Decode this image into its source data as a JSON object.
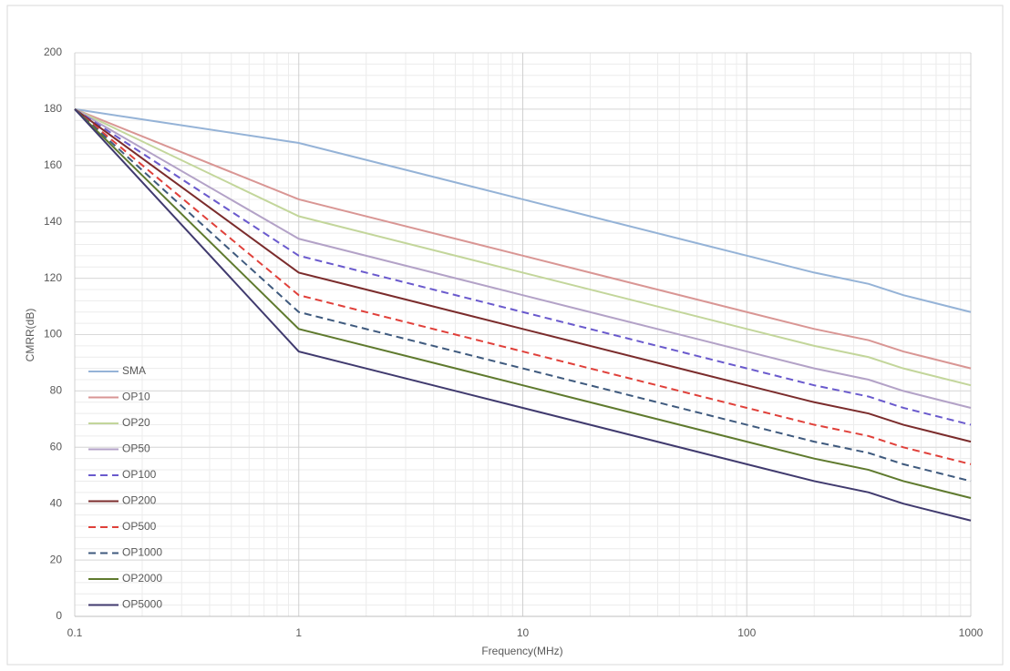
{
  "chart_data": {
    "type": "line",
    "x_label": "Frequency(MHz)",
    "y_label": "CMRR(dB)",
    "x": [
      0.1,
      1,
      10,
      100,
      200,
      350,
      500,
      1000
    ],
    "xlim": [
      0.1,
      1000
    ],
    "xticks": [
      0.1,
      1,
      10,
      100,
      1000
    ],
    "x_log": true,
    "ylim": [
      0,
      200
    ],
    "yticks": [
      0,
      20,
      40,
      60,
      80,
      100,
      120,
      140,
      160,
      180,
      200
    ],
    "grid": true,
    "minor_grid": true,
    "legend": "lower left",
    "series": [
      {
        "name": "SMA",
        "color": "#95b3d7",
        "dash": false,
        "values": [
          180,
          168,
          148,
          128,
          122,
          118,
          114,
          108
        ]
      },
      {
        "name": "OP10",
        "color": "#d99694",
        "dash": false,
        "values": [
          180,
          148,
          128,
          108,
          102,
          98,
          94,
          88
        ]
      },
      {
        "name": "OP20",
        "color": "#c3d69b",
        "dash": false,
        "values": [
          180,
          142,
          122,
          102,
          96,
          92,
          88,
          82
        ]
      },
      {
        "name": "OP50",
        "color": "#b3a2c7",
        "dash": false,
        "values": [
          180,
          134,
          114,
          94,
          88,
          84,
          80,
          74
        ]
      },
      {
        "name": "OP100",
        "color": "#6a5acd",
        "dash": true,
        "values": [
          180,
          128,
          108,
          88,
          82,
          78,
          74,
          68
        ]
      },
      {
        "name": "OP200",
        "color": "#7b2c2c",
        "dash": false,
        "values": [
          180,
          122,
          102,
          82,
          76,
          72,
          68,
          62
        ]
      },
      {
        "name": "OP500",
        "color": "#e0403a",
        "dash": true,
        "values": [
          180,
          114,
          94,
          74,
          68,
          64,
          60,
          54
        ]
      },
      {
        "name": "OP1000",
        "color": "#3f5a7e",
        "dash": true,
        "values": [
          180,
          108,
          88,
          68,
          62,
          58,
          54,
          48
        ]
      },
      {
        "name": "OP2000",
        "color": "#5f7a2e",
        "dash": false,
        "values": [
          180,
          102,
          82,
          62,
          56,
          52,
          48,
          42
        ]
      },
      {
        "name": "OP5000",
        "color": "#403a6e",
        "dash": false,
        "values": [
          180,
          94,
          74,
          54,
          48,
          44,
          40,
          34
        ]
      }
    ]
  }
}
